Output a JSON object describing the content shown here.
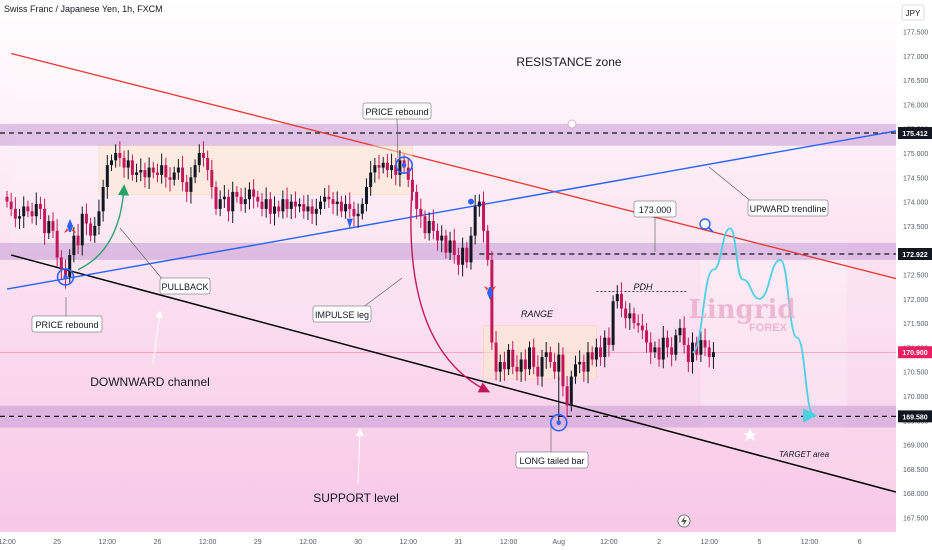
{
  "header": {
    "symbol_title": "Swiss Franc / Japanese Yen, 1h, FXCM",
    "currency": "JPY"
  },
  "chart_data": {
    "type": "candlestick",
    "y_range": [
      167.2,
      178.15
    ],
    "y_ticks": [
      177.5,
      177.0,
      176.5,
      176.0,
      175.5,
      175.0,
      174.5,
      174.0,
      173.5,
      173.0,
      172.5,
      172.0,
      171.5,
      171.0,
      170.5,
      170.0,
      169.5,
      169.0,
      168.5,
      168.0,
      167.5
    ],
    "y_tick_labels": [
      "177.500",
      "177.000",
      "176.500",
      "176.000",
      "175.500",
      "175.000",
      "174.500",
      "174.000",
      "173.500",
      "173.000",
      "172.500",
      "172.000",
      "171.500",
      "171.000",
      "170.500",
      "170.000",
      "169.500",
      "169.000",
      "168.500",
      "168.000",
      "167.500"
    ],
    "x_ticks": [
      {
        "label": "12:00",
        "i": 0
      },
      {
        "label": "25",
        "i": 12
      },
      {
        "label": "12:00",
        "i": 24
      },
      {
        "label": "26",
        "i": 36
      },
      {
        "label": "12:00",
        "i": 48
      },
      {
        "label": "29",
        "i": 60
      },
      {
        "label": "12:00",
        "i": 72
      },
      {
        "label": "30",
        "i": 84
      },
      {
        "label": "12:00",
        "i": 96
      },
      {
        "label": "31",
        "i": 108
      },
      {
        "label": "12:00",
        "i": 120
      },
      {
        "label": "Aug",
        "i": 132
      },
      {
        "label": "12:00",
        "i": 144
      },
      {
        "label": "2",
        "i": 156
      },
      {
        "label": "12:00",
        "i": 168
      },
      {
        "label": "5",
        "i": 180
      },
      {
        "label": "12:00",
        "i": 192
      },
      {
        "label": "6",
        "i": 204
      },
      {
        "label": "12:00",
        "i": 216
      }
    ],
    "price_badges": [
      {
        "label": "175.412",
        "value": 175.412,
        "color": "#131722"
      },
      {
        "label": "172.922",
        "value": 172.922,
        "color": "#131722"
      },
      {
        "label": "170.900",
        "value": 170.9,
        "color": "#e91e63"
      },
      {
        "label": "169.580",
        "value": 169.58,
        "color": "#131722"
      }
    ],
    "closes": [
      174.0,
      173.85,
      173.65,
      173.7,
      173.9,
      173.8,
      173.7,
      173.95,
      173.85,
      173.35,
      173.6,
      173.4,
      172.85,
      172.6,
      172.45,
      172.9,
      173.3,
      173.1,
      173.75,
      173.55,
      173.3,
      173.5,
      173.8,
      174.3,
      174.75,
      174.85,
      175.0,
      174.9,
      174.7,
      174.85,
      174.55,
      174.6,
      174.65,
      174.5,
      174.7,
      174.6,
      174.55,
      174.75,
      174.5,
      174.45,
      174.6,
      174.7,
      174.4,
      174.2,
      174.5,
      174.75,
      175.0,
      174.9,
      174.65,
      174.3,
      173.85,
      174.05,
      174.1,
      173.8,
      174.2,
      174.1,
      173.95,
      174.05,
      174.25,
      174.1,
      174.0,
      173.85,
      174.05,
      173.75,
      173.9,
      173.8,
      174.05,
      173.85,
      174.0,
      173.9,
      173.95,
      173.8,
      173.9,
      173.75,
      173.85,
      174.0,
      174.1,
      174.05,
      173.95,
      174.0,
      173.8,
      173.95,
      173.85,
      173.7,
      173.75,
      173.95,
      174.3,
      174.6,
      174.75,
      174.7,
      174.8,
      174.65,
      174.75,
      174.55,
      174.85,
      174.7,
      174.45,
      174.2,
      173.85,
      173.7,
      173.35,
      173.6,
      173.4,
      173.2,
      173.3,
      172.95,
      173.2,
      172.9,
      172.7,
      173.05,
      172.75,
      173.3,
      173.9,
      174.0,
      173.4,
      172.8,
      171.1,
      170.5,
      170.7,
      170.55,
      170.95,
      170.6,
      170.5,
      170.75,
      170.55,
      171.0,
      170.6,
      170.4,
      170.8,
      170.9,
      170.7,
      170.5,
      170.85,
      170.2,
      169.8,
      170.4,
      170.65,
      170.7,
      170.5,
      170.9,
      170.75,
      171.0,
      170.8,
      171.2,
      171.05,
      171.95,
      172.1,
      171.8,
      171.6,
      171.7,
      171.5,
      171.45,
      171.35,
      171.1,
      170.9,
      171.0,
      170.75,
      171.2,
      171.0,
      170.85,
      171.25,
      171.4,
      171.05,
      170.7,
      171.1,
      170.85,
      171.15,
      171.0,
      170.8,
      170.9
    ],
    "channel": {
      "upper": {
        "i1": 1,
        "v1": 177.05,
        "i2": 218,
        "v2": 172.3,
        "color": "#e53935"
      },
      "lower": {
        "i1": 1,
        "v1": 172.9,
        "i2": 218,
        "v2": 167.9,
        "color": "#000000"
      }
    },
    "upward_trendline": {
      "i1": 0,
      "v1": 172.2,
      "i2": 234,
      "v2": 175.78,
      "color": "#2962ff"
    },
    "zones": [
      {
        "name": "resistance-zone",
        "top": 175.6,
        "bottom": 175.15
      },
      {
        "name": "mid-zone",
        "top": 173.15,
        "bottom": 172.8
      },
      {
        "name": "support-zone",
        "top": 169.8,
        "bottom": 169.35
      }
    ],
    "levels": [
      175.412,
      172.922,
      169.58
    ],
    "projection": [
      {
        "i": 164,
        "v": 170.9
      },
      {
        "i": 169,
        "v": 172.6
      },
      {
        "i": 173,
        "v": 173.45
      },
      {
        "i": 176,
        "v": 172.4
      },
      {
        "i": 180,
        "v": 172.0
      },
      {
        "i": 185,
        "v": 172.8
      },
      {
        "i": 189,
        "v": 171.2
      },
      {
        "i": 193,
        "v": 169.6
      }
    ],
    "annotations": {
      "resistance_zone": "RESISTANCE zone",
      "price_rebound_top": "PRICE rebound",
      "price_rebound_left": "PRICE rebound",
      "pullback": "PULLBACK",
      "impulse_leg": "IMPULSE leg",
      "downward_channel": "DOWNWARD channel",
      "range": "RANGE",
      "pdh": "PDH",
      "upward_trendline": "UPWARD trendline",
      "level_173": "173.000",
      "long_tailed_bar": "LONG tailed bar",
      "support_level": "SUPPORT level",
      "target_area": "TARGET area"
    },
    "watermark": {
      "brand": "Lingrid",
      "sub": "FOREX"
    }
  }
}
